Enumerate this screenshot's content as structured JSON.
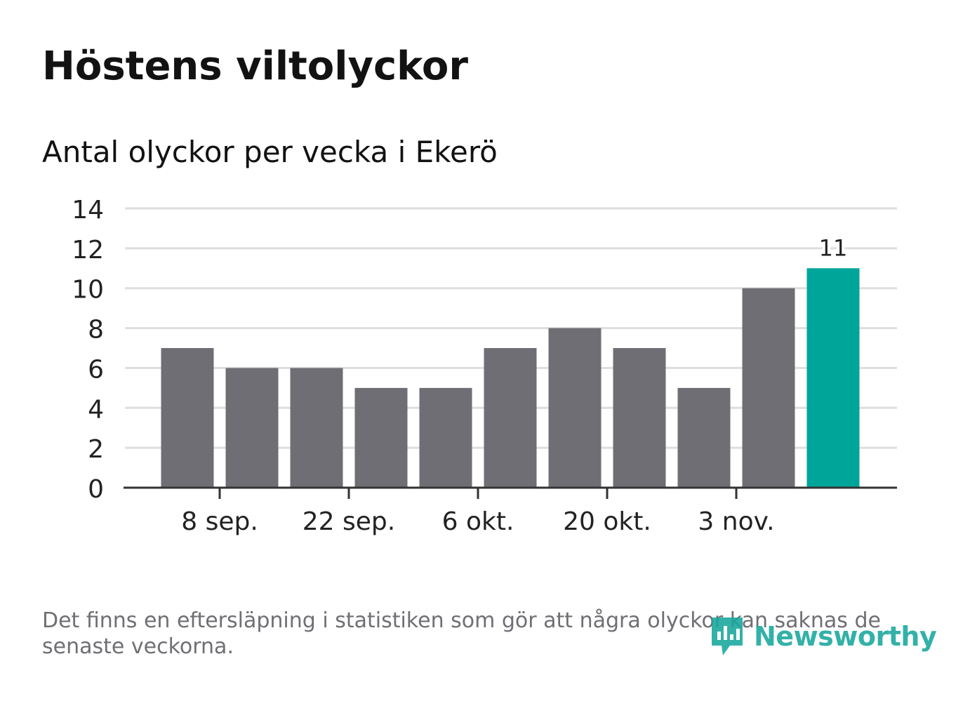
{
  "title": "Höstens viltolyckor",
  "subtitle": "Antal olyckor per vecka i Ekerö",
  "note": "Det finns en eftersläpning i statistiken som gör att några olyckor kan saknas de senaste veckorna.",
  "logo": {
    "text": "Newsworthy",
    "icon": "newsworthy-bar-chart-icon"
  },
  "colors": {
    "bar": "#6f6e74",
    "highlight": "#00a59a",
    "grid": "#dedede",
    "axis": "#333333",
    "text": "#222222"
  },
  "chart_data": {
    "type": "bar",
    "title": "Höstens viltolyckor",
    "subtitle": "Antal olyckor per vecka i Ekerö",
    "x": [
      "2019-09-02",
      "2019-09-09",
      "2019-09-16",
      "2019-09-23",
      "2019-09-30",
      "2019-10-07",
      "2019-10-14",
      "2019-10-21",
      "2019-10-28",
      "2019-11-04",
      "2019-11-11"
    ],
    "values": [
      7,
      6,
      6,
      5,
      5,
      7,
      8,
      7,
      5,
      10,
      11
    ],
    "highlight_index": 10,
    "data_labels": [
      {
        "index": 10,
        "text": "11"
      }
    ],
    "x_ticks": [
      {
        "after_index": 0,
        "label": "8 sep."
      },
      {
        "after_index": 2,
        "label": "22 sep."
      },
      {
        "after_index": 4,
        "label": "6 okt."
      },
      {
        "after_index": 6,
        "label": "20 okt."
      },
      {
        "after_index": 8,
        "label": "3 nov."
      }
    ],
    "y_ticks": [
      0,
      2,
      4,
      6,
      8,
      10,
      12,
      14
    ],
    "ylim": [
      0,
      14
    ],
    "grid": true,
    "xlabel": "",
    "ylabel": ""
  }
}
